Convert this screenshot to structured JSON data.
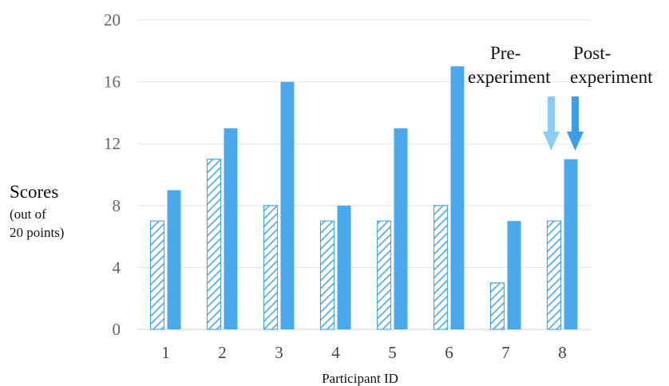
{
  "chart_data": {
    "type": "bar",
    "categories": [
      "1",
      "2",
      "3",
      "4",
      "5",
      "6",
      "7",
      "8"
    ],
    "series": [
      {
        "name": "Pre-experiment",
        "values": [
          7,
          11,
          8,
          7,
          7,
          8,
          3,
          7
        ],
        "color": "#4aa8ec",
        "pattern": "diagonal-hatch"
      },
      {
        "name": "Post-experiment",
        "values": [
          9,
          13,
          16,
          8,
          13,
          17,
          7,
          11
        ],
        "color": "#4aa8ec",
        "pattern": "solid"
      }
    ],
    "yticks": [
      "0",
      "4",
      "8",
      "12",
      "16",
      "20"
    ],
    "ylim": [
      0,
      20
    ],
    "ylabel": "Scores",
    "ylabel_sub": [
      "(out of",
      "20 points)"
    ],
    "xlabel": "Participant ID",
    "grid": "horizontal",
    "legend": {
      "pre_lines": [
        "Pre-",
        "experiment"
      ],
      "post_lines": [
        "Post-",
        "experiment"
      ],
      "placement": "top-right",
      "pre_arrow_color": "#8dcdf5",
      "post_arrow_color": "#3d9ee6"
    }
  }
}
